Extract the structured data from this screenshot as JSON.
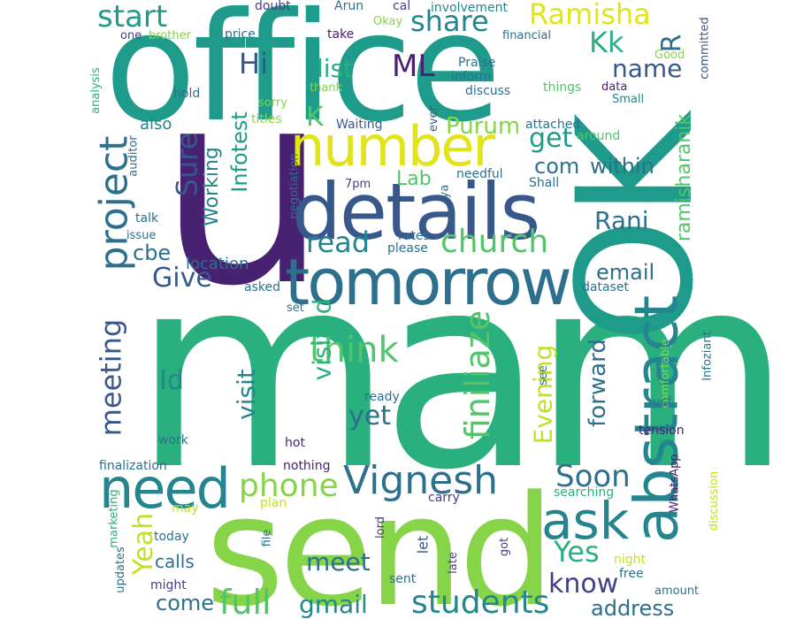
{
  "palette": {
    "dark_purple": "#482173",
    "indigo": "#433e85",
    "blue": "#38588c",
    "steel": "#2d708e",
    "teal": "#25858e",
    "sea": "#1e9b8a",
    "green": "#2ab07f",
    "lime": "#52c569",
    "chartreuse": "#86d549",
    "yellow": "#c2df23",
    "bright_yellow": "#e2e418"
  },
  "words": [
    {
      "text": "mam",
      "color": "#2ab07f"
    },
    {
      "text": "u",
      "color": "#482173"
    },
    {
      "text": "office",
      "color": "#1e9b8a"
    },
    {
      "text": "send",
      "color": "#86d549"
    },
    {
      "text": "OK",
      "color": "#1e9b8a"
    },
    {
      "text": "details",
      "color": "#38588c"
    },
    {
      "text": "tomorrow",
      "color": "#2d708e"
    },
    {
      "text": "number",
      "color": "#e2e418"
    },
    {
      "text": "abstract",
      "color": "#25858e"
    },
    {
      "text": "need",
      "color": "#25858e"
    },
    {
      "text": "ask",
      "color": "#25858e"
    },
    {
      "text": "project",
      "color": "#2d708e"
    },
    {
      "text": "Vignesh",
      "color": "#2d708e"
    },
    {
      "text": "phone",
      "color": "#86d549"
    },
    {
      "text": "church",
      "color": "#52c569"
    },
    {
      "text": "finiliaze",
      "color": "#52c569"
    },
    {
      "text": "think",
      "color": "#52c569"
    },
    {
      "text": "students",
      "color": "#25858e"
    },
    {
      "text": "full",
      "color": "#52c569"
    },
    {
      "text": "gmail",
      "color": "#25858e"
    },
    {
      "text": "meeting",
      "color": "#38588c"
    },
    {
      "text": "Soon",
      "color": "#2d708e"
    },
    {
      "text": "know",
      "color": "#433e85"
    },
    {
      "text": "Yes",
      "color": "#2ab07f"
    },
    {
      "text": "address",
      "color": "#2d708e"
    },
    {
      "text": "start",
      "color": "#1e9b8a"
    },
    {
      "text": "share",
      "color": "#25858e"
    },
    {
      "text": "Ramisha",
      "color": "#e2e418"
    },
    {
      "text": "Kk",
      "color": "#2ab07f"
    },
    {
      "text": "name",
      "color": "#38588c"
    },
    {
      "text": "R",
      "color": "#2d708e"
    },
    {
      "text": "Hi",
      "color": "#38588c"
    },
    {
      "text": "ML",
      "color": "#482173"
    },
    {
      "text": "list",
      "color": "#2ab07f"
    },
    {
      "text": "K",
      "color": "#52c569"
    },
    {
      "text": "get",
      "color": "#1e9b8a"
    },
    {
      "text": "Purum",
      "color": "#86d549"
    },
    {
      "text": "com",
      "color": "#2d708e"
    },
    {
      "text": "within",
      "color": "#2d708e"
    },
    {
      "text": "Sure",
      "color": "#38588c"
    },
    {
      "text": "Infotest",
      "color": "#1e9b8a"
    },
    {
      "text": "Working",
      "color": "#25858e"
    },
    {
      "text": "Lab",
      "color": "#52c569"
    },
    {
      "text": "Rani",
      "color": "#2d708e"
    },
    {
      "text": "ramisharanik",
      "color": "#52c569"
    },
    {
      "text": "read",
      "color": "#25858e"
    },
    {
      "text": "Give",
      "color": "#38588c"
    },
    {
      "text": "cbe",
      "color": "#2d708e"
    },
    {
      "text": "email",
      "color": "#2d708e"
    },
    {
      "text": "location",
      "color": "#2d708e"
    },
    {
      "text": "Id",
      "color": "#25858e"
    },
    {
      "text": "visit",
      "color": "#25858e"
    },
    {
      "text": "visited",
      "color": "#2ab07f"
    },
    {
      "text": "yet",
      "color": "#2d708e"
    },
    {
      "text": "Evening",
      "color": "#c2df23"
    },
    {
      "text": "forward",
      "color": "#2d708e"
    },
    {
      "text": "Yeah",
      "color": "#c2df23"
    },
    {
      "text": "meet",
      "color": "#2d708e"
    },
    {
      "text": "come",
      "color": "#2d708e"
    },
    {
      "text": "calls",
      "color": "#2d708e"
    },
    {
      "text": "also",
      "color": "#25858e"
    },
    {
      "text": "doubt",
      "color": "#433e85"
    },
    {
      "text": "Arun",
      "color": "#2d708e"
    },
    {
      "text": "cal",
      "color": "#433e85"
    },
    {
      "text": "involvement",
      "color": "#25858e"
    },
    {
      "text": "one",
      "color": "#433e85"
    },
    {
      "text": "brother",
      "color": "#86d549"
    },
    {
      "text": "price",
      "color": "#2d708e"
    },
    {
      "text": "take",
      "color": "#482173"
    },
    {
      "text": "Okay",
      "color": "#86d549"
    },
    {
      "text": "financial",
      "color": "#2d708e"
    },
    {
      "text": "Good",
      "color": "#86d549"
    },
    {
      "text": "committed",
      "color": "#38588c"
    },
    {
      "text": "Praise",
      "color": "#2d708e"
    },
    {
      "text": "inform",
      "color": "#2d708e"
    },
    {
      "text": "discuss",
      "color": "#2d708e"
    },
    {
      "text": "things",
      "color": "#52c569"
    },
    {
      "text": "data",
      "color": "#482173"
    },
    {
      "text": "Small",
      "color": "#25858e"
    },
    {
      "text": "thank",
      "color": "#86d549"
    },
    {
      "text": "hold",
      "color": "#2d708e"
    },
    {
      "text": "sorry",
      "color": "#86d549"
    },
    {
      "text": "titles",
      "color": "#86d549"
    },
    {
      "text": "Waiting",
      "color": "#38588c"
    },
    {
      "text": "ever",
      "color": "#38588c"
    },
    {
      "text": "attached",
      "color": "#2d708e"
    },
    {
      "text": "around",
      "color": "#52c569"
    },
    {
      "text": "analysis",
      "color": "#2ab07f"
    },
    {
      "text": "auditor",
      "color": "#2d708e"
    },
    {
      "text": "needful",
      "color": "#2d708e"
    },
    {
      "text": "Shall",
      "color": "#2d708e"
    },
    {
      "text": "7pm",
      "color": "#433e85"
    },
    {
      "text": "ya",
      "color": "#2d708e"
    },
    {
      "text": "negotiation",
      "color": "#2d708e"
    },
    {
      "text": "talk",
      "color": "#2d708e"
    },
    {
      "text": "issue",
      "color": "#2d708e"
    },
    {
      "text": "rates",
      "color": "#2d708e"
    },
    {
      "text": "please",
      "color": "#2d708e"
    },
    {
      "text": "dataset",
      "color": "#2d708e"
    },
    {
      "text": "asked",
      "color": "#2d708e"
    },
    {
      "text": "set",
      "color": "#2d708e"
    },
    {
      "text": "Infoziant",
      "color": "#2d708e"
    },
    {
      "text": "comfortable",
      "color": "#86d549"
    },
    {
      "text": "see",
      "color": "#2d708e"
    },
    {
      "text": "ready",
      "color": "#2d708e"
    },
    {
      "text": "vcf",
      "color": "#2d708e"
    },
    {
      "text": "work",
      "color": "#2d708e"
    },
    {
      "text": "hot",
      "color": "#482173"
    },
    {
      "text": "tension",
      "color": "#482173"
    },
    {
      "text": "finalization",
      "color": "#2d708e"
    },
    {
      "text": "nothing",
      "color": "#482173"
    },
    {
      "text": "WhatsApp",
      "color": "#482173"
    },
    {
      "text": "searching",
      "color": "#2ab07f"
    },
    {
      "text": "discussion",
      "color": "#c2df23"
    },
    {
      "text": "marketing",
      "color": "#2ab07f"
    },
    {
      "text": "may",
      "color": "#c2df23"
    },
    {
      "text": "plan",
      "color": "#c2df23"
    },
    {
      "text": "carry",
      "color": "#433e85"
    },
    {
      "text": "today",
      "color": "#2d708e"
    },
    {
      "text": "file",
      "color": "#2d708e"
    },
    {
      "text": "let",
      "color": "#38588c"
    },
    {
      "text": "lord",
      "color": "#433e85"
    },
    {
      "text": "late",
      "color": "#433e85"
    },
    {
      "text": "got",
      "color": "#433e85"
    },
    {
      "text": "night",
      "color": "#c2df23"
    },
    {
      "text": "free",
      "color": "#2d708e"
    },
    {
      "text": "updates",
      "color": "#2d708e"
    },
    {
      "text": "might",
      "color": "#433e85"
    },
    {
      "text": "sent",
      "color": "#2d708e"
    },
    {
      "text": "amount",
      "color": "#2d708e"
    }
  ]
}
